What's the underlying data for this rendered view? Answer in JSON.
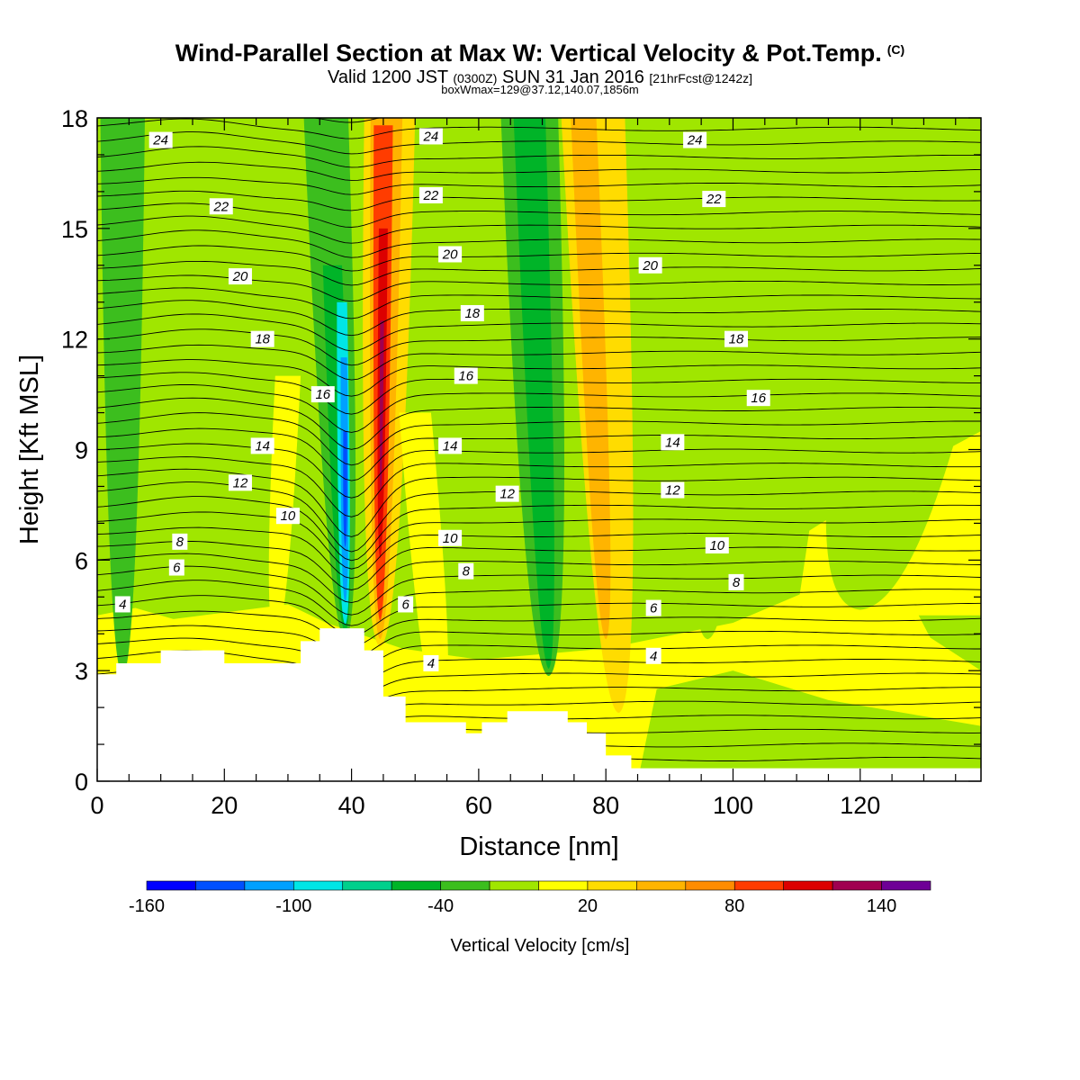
{
  "title": "Wind-Parallel Section at Max W: Vertical Velocity & Pot.Temp.",
  "title_mark": "(C)",
  "subtitle_valid": "Valid 1200 JST",
  "subtitle_utc": "(0300Z)",
  "subtitle_date": "SUN 31 Jan 2016",
  "subtitle_fcst": "[21hrFcst@1242z]",
  "box_info": "boxWmax=129@37.12,140.07,1856m",
  "chart_data": {
    "type": "heatmap",
    "xlabel": "Distance [nm]",
    "ylabel": "Height [Kft MSL]",
    "xlim": [
      0,
      139
    ],
    "ylim": [
      0,
      18
    ],
    "x_ticks": [
      "0",
      "20",
      "40",
      "60",
      "80",
      "100",
      "120"
    ],
    "y_ticks": [
      "0",
      "3",
      "6",
      "9",
      "12",
      "15",
      "18"
    ],
    "colorbar": {
      "title": "Vertical Velocity [cm/s]",
      "labels": [
        "-160",
        "-100",
        "-40",
        "20",
        "80",
        "140"
      ],
      "levels": [
        -160,
        -140,
        -120,
        -100,
        -80,
        -60,
        -40,
        -20,
        0,
        20,
        40,
        60,
        80,
        100,
        120,
        140,
        160,
        180
      ],
      "colors": [
        "#0000ff",
        "#0050ff",
        "#00a0ff",
        "#00e6e6",
        "#00d08c",
        "#00b428",
        "#3cbe1e",
        "#a0e600",
        "#ffff00",
        "#ffdc00",
        "#ffb400",
        "#ff8c00",
        "#ff3c00",
        "#dc0000",
        "#a00050",
        "#6e0096"
      ]
    },
    "vertical_velocity_bands": [
      {
        "x_base": 4,
        "x_top": 4,
        "width_base": 5,
        "width_top": 7,
        "h_bottom": 3,
        "h_top": 18,
        "color": "#3cbe1e"
      },
      {
        "x_base": 28,
        "x_top": 30,
        "width_base": 4,
        "width_top": 4,
        "h_bottom": 4,
        "h_top": 11,
        "color": "#ffff00"
      },
      {
        "x_base": 39,
        "x_top": 36,
        "width_base": 6,
        "width_top": 7,
        "h_bottom": 4,
        "h_top": 18,
        "color": "#3cbe1e"
      },
      {
        "x_base": 39,
        "x_top": 37,
        "width_base": 3.5,
        "width_top": 3,
        "h_bottom": 4.2,
        "h_top": 14,
        "color": "#00b428"
      },
      {
        "x_base": 39,
        "x_top": 38.5,
        "width_base": 2.6,
        "width_top": 1.6,
        "h_bottom": 4.4,
        "h_top": 13,
        "color": "#00e6e6"
      },
      {
        "x_base": 39,
        "x_top": 38.8,
        "width_base": 1.6,
        "width_top": 1,
        "h_bottom": 5,
        "h_top": 11.5,
        "color": "#00a0ff"
      },
      {
        "x_base": 39,
        "x_top": 39,
        "width_base": 0.8,
        "width_top": 0.6,
        "h_bottom": 6.5,
        "h_top": 9.5,
        "color": "#0050ff"
      },
      {
        "x_base": 44.5,
        "x_top": 46,
        "width_base": 7,
        "width_top": 8,
        "h_bottom": 3.8,
        "h_top": 18,
        "color": "#ffdc00"
      },
      {
        "x_base": 44.5,
        "x_top": 45.5,
        "width_base": 4,
        "width_top": 5,
        "h_bottom": 4,
        "h_top": 18,
        "color": "#ffb400"
      },
      {
        "x_base": 44.5,
        "x_top": 45,
        "width_base": 2.6,
        "width_top": 3,
        "h_bottom": 4.5,
        "h_top": 17.8,
        "color": "#ff3c00"
      },
      {
        "x_base": 44.5,
        "x_top": 45,
        "width_base": 1.4,
        "width_top": 1.4,
        "h_bottom": 6.2,
        "h_top": 15,
        "color": "#dc0000"
      },
      {
        "x_base": 44.6,
        "x_top": 44.8,
        "width_base": 0.6,
        "width_top": 0.6,
        "h_bottom": 8,
        "h_top": 12.5,
        "color": "#a00050"
      },
      {
        "x_base": 54,
        "x_top": 50,
        "width_base": 6,
        "width_top": 5,
        "h_bottom": 1.8,
        "h_top": 10,
        "color": "#ffff00"
      },
      {
        "x_base": 71,
        "x_top": 68,
        "width_base": 8,
        "width_top": 9,
        "h_bottom": 3,
        "h_top": 18,
        "color": "#3cbe1e"
      },
      {
        "x_base": 71,
        "x_top": 68,
        "width_base": 4,
        "width_top": 5,
        "h_bottom": 3.2,
        "h_top": 18,
        "color": "#00b428"
      },
      {
        "x_base": 82,
        "x_top": 78,
        "width_base": 8,
        "width_top": 10,
        "h_bottom": 2,
        "h_top": 18,
        "color": "#ffdc00"
      },
      {
        "x_base": 80,
        "x_top": 76.5,
        "width_base": 4,
        "width_top": 4,
        "h_bottom": 4,
        "h_top": 18,
        "color": "#ffb400"
      },
      {
        "x_base": 96,
        "x_top": 100,
        "width_base": 10,
        "width_top": 8,
        "h_bottom": 4,
        "h_top": 18,
        "color": "#a0e600"
      },
      {
        "x_base": 120,
        "x_top": 135,
        "width_base": 25,
        "width_top": 22,
        "h_bottom": 4.8,
        "h_top": 18,
        "color": "#a0e600"
      }
    ],
    "theta_labels": [
      {
        "text": "24",
        "x": 10,
        "y": 17.4
      },
      {
        "text": "24",
        "x": 52.5,
        "y": 17.5
      },
      {
        "text": "24",
        "x": 94,
        "y": 17.4
      },
      {
        "text": "22",
        "x": 19.5,
        "y": 15.6
      },
      {
        "text": "22",
        "x": 52.5,
        "y": 15.9
      },
      {
        "text": "22",
        "x": 97,
        "y": 15.8
      },
      {
        "text": "20",
        "x": 22.5,
        "y": 13.7
      },
      {
        "text": "20",
        "x": 55.5,
        "y": 14.3
      },
      {
        "text": "20",
        "x": 87,
        "y": 14.0
      },
      {
        "text": "18",
        "x": 26,
        "y": 12.0
      },
      {
        "text": "18",
        "x": 59,
        "y": 12.7
      },
      {
        "text": "18",
        "x": 100.5,
        "y": 12.0
      },
      {
        "text": "16",
        "x": 35.5,
        "y": 10.5
      },
      {
        "text": "16",
        "x": 58,
        "y": 11.0
      },
      {
        "text": "16",
        "x": 104,
        "y": 10.4
      },
      {
        "text": "14",
        "x": 26,
        "y": 9.1
      },
      {
        "text": "14",
        "x": 55.5,
        "y": 9.1
      },
      {
        "text": "14",
        "x": 90.5,
        "y": 9.2
      },
      {
        "text": "12",
        "x": 22.5,
        "y": 8.1
      },
      {
        "text": "12",
        "x": 64.5,
        "y": 7.8
      },
      {
        "text": "12",
        "x": 90.5,
        "y": 7.9
      },
      {
        "text": "10",
        "x": 30,
        "y": 7.2
      },
      {
        "text": "10",
        "x": 55.5,
        "y": 6.6
      },
      {
        "text": "10",
        "x": 97.5,
        "y": 6.4
      },
      {
        "text": "8",
        "x": 13,
        "y": 6.5
      },
      {
        "text": "8",
        "x": 58,
        "y": 5.7
      },
      {
        "text": "8",
        "x": 100.5,
        "y": 5.4
      },
      {
        "text": "6",
        "x": 12.5,
        "y": 5.8
      },
      {
        "text": "6",
        "x": 48.5,
        "y": 4.8
      },
      {
        "text": "6",
        "x": 87.5,
        "y": 4.7
      },
      {
        "text": "4",
        "x": 4,
        "y": 4.8
      },
      {
        "text": "4",
        "x": 52.5,
        "y": 3.2
      },
      {
        "text": "4",
        "x": 87.5,
        "y": 3.4
      }
    ],
    "terrain_profile": [
      [
        0,
        2.9
      ],
      [
        3,
        2.9
      ],
      [
        3,
        3.2
      ],
      [
        10,
        3.2
      ],
      [
        10,
        3.55
      ],
      [
        20,
        3.55
      ],
      [
        20,
        3.2
      ],
      [
        32,
        3.2
      ],
      [
        32,
        3.8
      ],
      [
        35,
        3.8
      ],
      [
        35,
        4.15
      ],
      [
        42,
        4.15
      ],
      [
        42,
        3.55
      ],
      [
        45,
        3.55
      ],
      [
        45,
        2.3
      ],
      [
        48.5,
        2.3
      ],
      [
        48.5,
        1.6
      ],
      [
        58,
        1.6
      ],
      [
        58,
        1.3
      ],
      [
        60.5,
        1.3
      ],
      [
        60.5,
        1.6
      ],
      [
        64.5,
        1.6
      ],
      [
        64.5,
        1.9
      ],
      [
        74,
        1.9
      ],
      [
        74,
        1.6
      ],
      [
        77,
        1.6
      ],
      [
        77,
        1.3
      ],
      [
        80,
        1.3
      ],
      [
        80,
        0.7
      ],
      [
        84,
        0.7
      ],
      [
        84,
        0.35
      ],
      [
        139,
        0.35
      ],
      [
        139,
        0
      ]
    ]
  }
}
